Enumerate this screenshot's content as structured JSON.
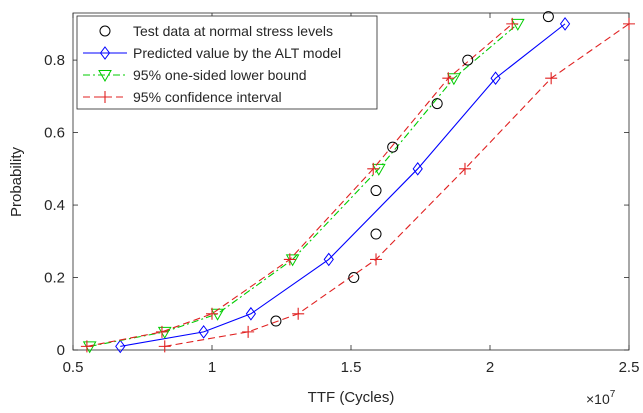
{
  "chart_data": {
    "type": "line",
    "title": "",
    "xlabel": "TTF (Cycles)",
    "ylabel": "Probability",
    "x_exponent_label": "×10",
    "x_exponent_power": "7",
    "xlim": [
      0.5,
      2.5
    ],
    "ylim": [
      0,
      0.93
    ],
    "x_ticks": [
      0.5,
      1,
      1.5,
      2,
      2.5
    ],
    "x_tick_labels": [
      "0.5",
      "1",
      "1.5",
      "2",
      "2.5"
    ],
    "y_ticks": [
      0,
      0.2,
      0.4,
      0.6,
      0.8
    ],
    "y_tick_labels": [
      "0",
      "0.2",
      "0.4",
      "0.6",
      "0.8"
    ],
    "grid": false,
    "legend_position": "top-left",
    "series": [
      {
        "name": "Test data at normal stress levels",
        "style": "markers",
        "marker": "circle",
        "color": "#000000",
        "x": [
          1.23,
          1.51,
          1.59,
          1.59,
          1.65,
          1.81,
          1.92,
          2.21
        ],
        "y": [
          0.08,
          0.2,
          0.32,
          0.44,
          0.56,
          0.68,
          0.8,
          0.92
        ]
      },
      {
        "name": "Predicted value by the ALT model",
        "style": "solid",
        "marker": "diamond",
        "color": "#0000ff",
        "x": [
          0.67,
          0.97,
          1.14,
          1.42,
          1.74,
          2.02,
          2.27
        ],
        "y": [
          0.01,
          0.05,
          0.1,
          0.25,
          0.5,
          0.75,
          0.9
        ]
      },
      {
        "name": "95% one-sided lower bound",
        "style": "dashdot",
        "marker": "triangle-down",
        "color": "#00cc00",
        "x": [
          0.56,
          0.83,
          1.02,
          1.29,
          1.6,
          1.87,
          2.1
        ],
        "y": [
          0.01,
          0.05,
          0.1,
          0.25,
          0.5,
          0.75,
          0.9
        ]
      },
      {
        "name": "95% confidence interval",
        "style": "dashed",
        "marker": "plus",
        "color": "#e02020",
        "x": [
          0.55,
          0.82,
          1.0,
          1.28,
          1.58,
          1.85,
          2.08
        ],
        "y": [
          0.01,
          0.05,
          0.1,
          0.25,
          0.5,
          0.75,
          0.9
        ],
        "x2": [
          0.83,
          1.13,
          1.31,
          1.59,
          1.91,
          2.22,
          2.5
        ],
        "y2": [
          0.01,
          0.05,
          0.1,
          0.25,
          0.5,
          0.75,
          0.9
        ]
      }
    ]
  }
}
